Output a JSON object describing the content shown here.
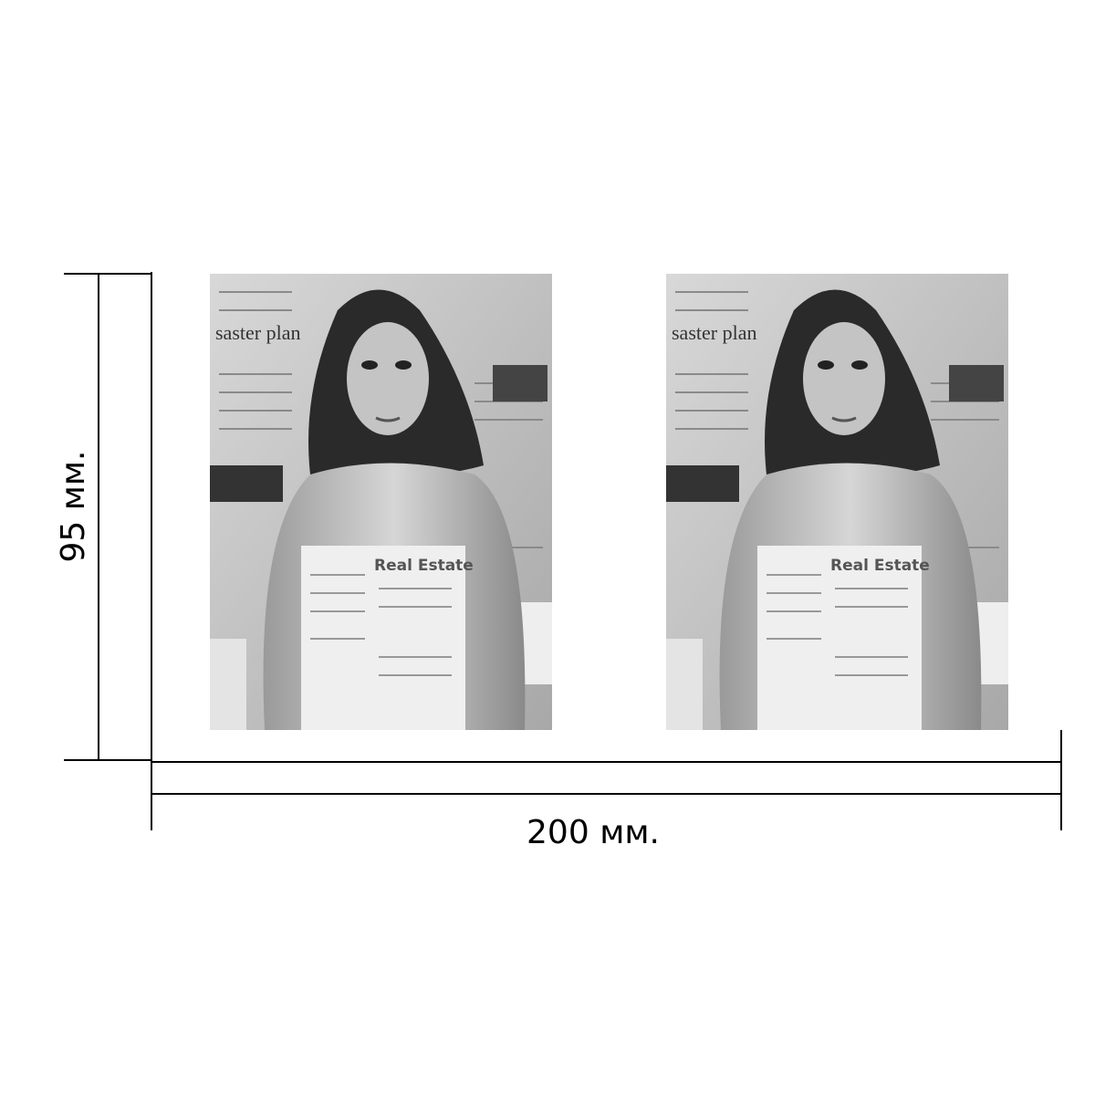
{
  "dimensions": {
    "height": "95 мм.",
    "width": "200 мм."
  },
  "photos": [
    {
      "texts": [
        "saster plan",
        "Real Estate"
      ]
    },
    {
      "texts": [
        "saster plan",
        "Real Estate"
      ]
    }
  ]
}
